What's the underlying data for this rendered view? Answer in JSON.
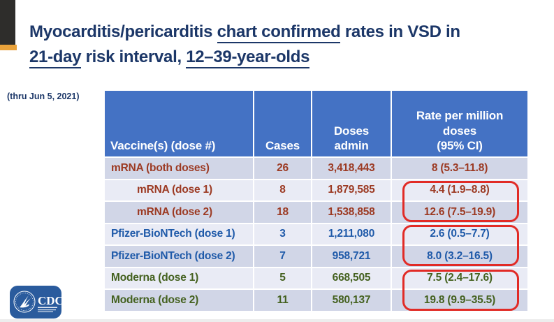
{
  "slide": {
    "title_segments": [
      {
        "text": "Myocarditis/pericarditis ",
        "underline": false
      },
      {
        "text": "chart confirmed",
        "underline": true
      },
      {
        "text": " rates in VSD in",
        "underline": false
      },
      {
        "br": true
      },
      {
        "text": "21-day",
        "underline": true
      },
      {
        "text": " risk interval, ",
        "underline": false
      },
      {
        "text": "12–39-year-olds",
        "underline": true
      }
    ],
    "date_note": "(thru Jun 5, 2021)"
  },
  "table": {
    "header_lines": [
      [
        "Vaccine(s) (dose #)"
      ],
      [
        "Cases"
      ],
      [
        "Doses",
        "admin"
      ],
      [
        "Rate per million",
        "doses",
        "(95% CI)"
      ]
    ],
    "rows": [
      {
        "vaccine": "mRNA (both doses)",
        "cases": "26",
        "doses": "3,418,443",
        "rate": "8 (5.3–11.8)",
        "group": "mrna",
        "indent": false,
        "shade": "dark"
      },
      {
        "vaccine": "mRNA (dose 1)",
        "cases": "8",
        "doses": "1,879,585",
        "rate": "4.4 (1.9–8.8)",
        "group": "mrna",
        "indent": true,
        "shade": "light"
      },
      {
        "vaccine": "mRNA (dose 2)",
        "cases": "18",
        "doses": "1,538,858",
        "rate": "12.6 (7.5–19.9)",
        "group": "mrna",
        "indent": true,
        "shade": "dark"
      },
      {
        "vaccine": "Pfizer-BioNTech (dose 1)",
        "cases": "3",
        "doses": "1,211,080",
        "rate": "2.6 (0.5–7.7)",
        "group": "pfizer",
        "indent": false,
        "shade": "light"
      },
      {
        "vaccine": "Pfizer-BioNTech (dose 2)",
        "cases": "7",
        "doses": "958,721",
        "rate": "8.0 (3.2–16.5)",
        "group": "pfizer",
        "indent": false,
        "shade": "dark"
      },
      {
        "vaccine": "Moderna (dose 1)",
        "cases": "5",
        "doses": "668,505",
        "rate": "7.5 (2.4–17.6)",
        "group": "moderna",
        "indent": false,
        "shade": "light"
      },
      {
        "vaccine": "Moderna (dose 2)",
        "cases": "11",
        "doses": "580,137",
        "rate": "19.8 (9.9–35.5)",
        "group": "moderna",
        "indent": false,
        "shade": "dark"
      }
    ]
  },
  "highlights": [
    {
      "target": "mrna-dose-rates"
    },
    {
      "target": "pfizer-dose-rates"
    },
    {
      "target": "moderna-dose-rates"
    }
  ],
  "logo": {
    "label": "CDC"
  },
  "colors": {
    "title_navy": "#1c3768",
    "header_blue": "#4472c4",
    "row_dark": "#d1d6e7",
    "row_light": "#e9ebf5",
    "mrna_text": "#9c3a23",
    "pfizer_text": "#1f5aa9",
    "moderna_text": "#44611f",
    "highlight_red": "#e12b26",
    "accent_gold": "#e9a23b",
    "accent_black": "#2e2d2b",
    "logo_blue": "#2a5b9d"
  }
}
